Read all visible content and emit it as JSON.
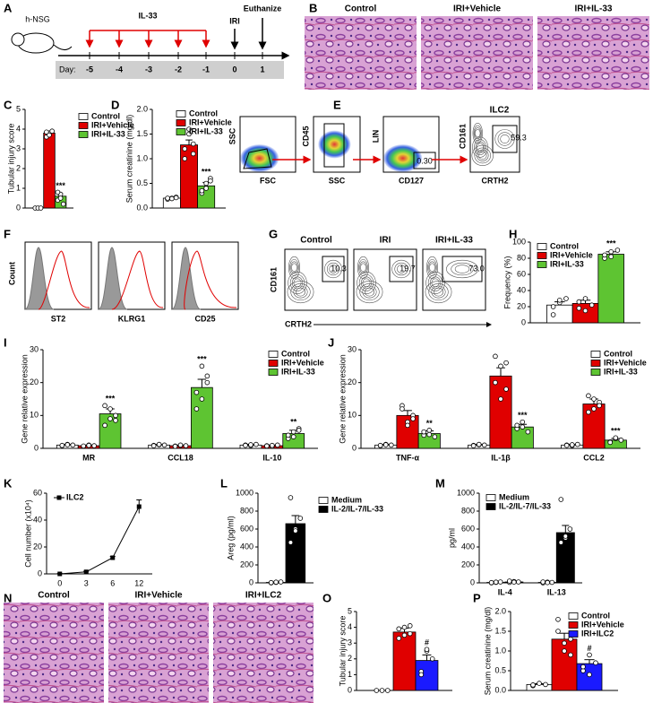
{
  "chart_data": [
    {
      "type": "bar",
      "label": "C",
      "ylabel": "Tubular injury score",
      "ylim": [
        0,
        5
      ],
      "yticks": [
        0,
        1,
        2,
        3,
        4,
        5
      ],
      "legend": "right",
      "series": [
        {
          "name": "Control",
          "color": "#ffffff",
          "values": [
            0
          ],
          "errors": [
            0
          ],
          "points": [
            [
              0,
              0,
              0
            ]
          ]
        },
        {
          "name": "IRI+Vehicle",
          "color": "#e00000",
          "values": [
            3.8
          ],
          "errors": [
            0.1
          ],
          "points": [
            [
              3.6,
              3.8,
              3.9,
              3.85,
              3.7
            ]
          ]
        },
        {
          "name": "IRI+IL-33",
          "color": "#5ec432",
          "values": [
            0.6
          ],
          "errors": [
            0.15
          ],
          "points": [
            [
              0.4,
              0.7,
              0.2,
              0.8,
              0.5
            ]
          ],
          "sig": [
            "***"
          ]
        }
      ]
    },
    {
      "type": "bar",
      "label": "D",
      "ylabel": "Serum creatinine (mg/dl)",
      "ylim": [
        0,
        2
      ],
      "yticks": [
        {
          "value": 0,
          "label": "0.0"
        },
        {
          "value": 0.5,
          "label": "0.5"
        },
        {
          "value": 1,
          "label": "1.0"
        },
        {
          "value": 1.5,
          "label": "1.5"
        },
        {
          "value": 2,
          "label": "2.0"
        }
      ],
      "legend": "upper right",
      "series": [
        {
          "name": "Control",
          "color": "#ffffff",
          "values": [
            0.2
          ],
          "errors": [
            0.02
          ],
          "points": [
            [
              0.18,
              0.2,
              0.22,
              0.2,
              0.19,
              0.21
            ]
          ]
        },
        {
          "name": "IRI+Vehicle",
          "color": "#e00000",
          "values": [
            1.28
          ],
          "errors": [
            0.1
          ],
          "points": [
            [
              1.0,
              1.5,
              1.3,
              1.2,
              1.6,
              1.1
            ]
          ]
        },
        {
          "name": "IRI+IL-33",
          "color": "#5ec432",
          "values": [
            0.45
          ],
          "errors": [
            0.07
          ],
          "points": [
            [
              0.3,
              0.5,
              0.6,
              0.35,
              0.4,
              0.55
            ]
          ],
          "sig": [
            "***"
          ]
        }
      ]
    },
    {
      "type": "bar",
      "label": "H",
      "ylabel": "Frequency (%)",
      "ylim": [
        0,
        100
      ],
      "yticks": [
        0,
        20,
        40,
        60,
        80,
        100
      ],
      "legend": "upper left",
      "series": [
        {
          "name": "Control",
          "color": "#ffffff",
          "values": [
            22
          ],
          "errors": [
            4
          ],
          "points": [
            [
              10,
              25,
              30,
              20,
              28
            ]
          ]
        },
        {
          "name": "IRI+Vehicle",
          "color": "#e00000",
          "values": [
            24
          ],
          "errors": [
            4
          ],
          "points": [
            [
              18,
              30,
              22,
              26,
              15
            ]
          ]
        },
        {
          "name": "IRI+IL-33",
          "color": "#5ec432",
          "values": [
            85
          ],
          "errors": [
            3
          ],
          "points": [
            [
              80,
              88,
              90,
              84,
              82
            ]
          ],
          "sig": [
            "***"
          ]
        }
      ]
    },
    {
      "type": "bar",
      "label": "I",
      "ylabel": "Gene relative expression",
      "categories": [
        "MR",
        "CCL18",
        "IL-10"
      ],
      "ylim": [
        0,
        30
      ],
      "yticks": [
        0,
        10,
        20,
        30
      ],
      "legend": "upper right",
      "series": [
        {
          "name": "Control",
          "color": "#ffffff",
          "values": [
            1,
            1,
            1
          ],
          "errors": [
            0.2,
            0.2,
            0.2
          ],
          "points": [
            [
              0.8,
              1.2,
              1,
              0.9,
              1.1
            ],
            [
              0.9,
              1.1,
              1,
              0.8,
              1.2
            ],
            [
              1,
              0.8,
              1.2,
              0.9,
              1.1
            ]
          ]
        },
        {
          "name": "IRI+Vehicle",
          "color": "#e00000",
          "values": [
            0.8,
            0.8,
            0.8
          ],
          "errors": [
            0.2,
            0.2,
            0.2
          ],
          "points": [
            [
              0.6,
              1,
              0.8,
              0.7,
              0.9
            ],
            [
              0.7,
              0.9,
              0.8,
              0.6,
              1
            ],
            [
              0.8,
              0.6,
              1,
              0.7,
              0.9
            ]
          ]
        },
        {
          "name": "IRI+IL-33",
          "color": "#5ec432",
          "values": [
            10.5,
            18.5,
            4.5
          ],
          "errors": [
            1.5,
            2.5,
            1
          ],
          "points": [
            [
              7,
              12,
              10,
              13,
              9,
              8.5
            ],
            [
              12,
              25,
              20,
              17,
              15,
              22
            ],
            [
              3,
              5,
              6,
              4,
              3.5,
              5.5
            ]
          ],
          "sig": [
            "***",
            "***",
            "**"
          ]
        }
      ]
    },
    {
      "type": "bar",
      "label": "J",
      "ylabel": "Gene relative expression",
      "categories": [
        "TNF-α",
        "IL-1β",
        "CCL2"
      ],
      "ylim": [
        0,
        30
      ],
      "yticks": [
        0,
        10,
        20,
        30
      ],
      "legend": "upper right",
      "series": [
        {
          "name": "Control",
          "color": "#ffffff",
          "values": [
            1,
            1,
            1
          ],
          "errors": [
            0.2,
            0.2,
            0.2
          ],
          "points": [
            [
              0.8,
              1.2,
              1,
              0.9,
              1.1
            ],
            [
              0.9,
              1.1,
              1,
              0.8,
              1.2
            ],
            [
              1,
              0.8,
              1.2,
              0.9,
              1.1
            ]
          ]
        },
        {
          "name": "IRI+Vehicle",
          "color": "#e00000",
          "values": [
            10,
            22,
            13.5
          ],
          "errors": [
            1.5,
            2.5,
            1.5
          ],
          "points": [
            [
              13,
              8,
              10,
              12,
              7,
              9
            ],
            [
              28,
              25,
              18,
              20,
              15,
              26
            ],
            [
              16,
              12,
              14,
              11,
              15,
              13
            ]
          ]
        },
        {
          "name": "IRI+IL-33",
          "color": "#5ec432",
          "values": [
            4.5,
            6.5,
            2.5
          ],
          "errors": [
            0.8,
            0.8,
            0.5
          ],
          "points": [
            [
              4,
              5.5,
              3.5,
              5,
              4.2
            ],
            [
              6,
              8,
              5,
              7,
              6.5
            ],
            [
              2,
              3,
              2.5,
              1.8,
              3.2
            ]
          ],
          "sig": [
            "**",
            "***",
            "***"
          ]
        }
      ]
    },
    {
      "type": "line",
      "label": "K",
      "ylabel": "Cell number (x10⁴)",
      "categories": [
        "0",
        "3",
        "6",
        "12"
      ],
      "ylim": [
        0,
        60
      ],
      "yticks": [
        0,
        20,
        40,
        60
      ],
      "legend": "upper left",
      "series": [
        {
          "name": "ILC2",
          "color": "#000000",
          "values": [
            0,
            1.5,
            12,
            50
          ],
          "errors": [
            0.3,
            0.5,
            1,
            5
          ]
        }
      ]
    },
    {
      "type": "bar",
      "label": "L",
      "ylabel": "Areg (pg/ml)",
      "ylim": [
        0,
        1000
      ],
      "yticks": [
        0,
        200,
        400,
        600,
        800,
        1000
      ],
      "legend": "right",
      "series": [
        {
          "name": "Medium",
          "color": "#ffffff",
          "values": [
            5
          ],
          "errors": [
            3
          ],
          "points": [
            [
              0,
              5,
              10,
              3,
              8
            ]
          ]
        },
        {
          "name": "IL-2/IL-7/IL-33",
          "color": "#000000",
          "values": [
            660
          ],
          "errors": [
            90
          ],
          "points": [
            [
              950,
              600,
              720,
              450,
              580
            ]
          ]
        }
      ]
    },
    {
      "type": "bar",
      "label": "M",
      "ylabel": "pg/ml",
      "categories": [
        "IL-4",
        "IL-13"
      ],
      "ylim": [
        0,
        1000
      ],
      "yticks": [
        0,
        200,
        400,
        600,
        800,
        1000
      ],
      "legend": "upper left",
      "series": [
        {
          "name": "Medium",
          "color": "#ffffff",
          "values": [
            5,
            5
          ],
          "errors": [
            3,
            3
          ],
          "points": [
            [
              0,
              5,
              10,
              3,
              8
            ],
            [
              0,
              8,
              5,
              10,
              3
            ]
          ]
        },
        {
          "name": "IL-2/IL-7/IL-33",
          "color": "#000000",
          "values": [
            10,
            560
          ],
          "errors": [
            5,
            80
          ],
          "points": [
            [
              5,
              15,
              10,
              20,
              8
            ],
            [
              930,
              500,
              600,
              450,
              520
            ]
          ]
        }
      ]
    },
    {
      "type": "bar",
      "label": "O",
      "ylabel": "Tubular injury score",
      "ylim": [
        0,
        5
      ],
      "yticks": [
        0,
        1,
        2,
        3,
        4,
        5
      ],
      "series": [
        {
          "color": "#ffffff",
          "values": [
            0
          ],
          "errors": [
            0
          ],
          "points": [
            [
              0,
              0,
              0
            ]
          ]
        },
        {
          "color": "#e00000",
          "values": [
            3.7
          ],
          "errors": [
            0.25
          ],
          "points": [
            [
              3.3,
              4,
              3.6,
              3.9,
              3.5,
              4.1
            ]
          ]
        },
        {
          "color": "#1a1aff",
          "values": [
            1.9
          ],
          "errors": [
            0.35
          ],
          "points": [
            [
              1.2,
              2.5,
              2,
              1,
              2.6
            ]
          ],
          "sig": [
            "#"
          ]
        }
      ]
    },
    {
      "type": "bar",
      "label": "P",
      "ylabel": "Serum creatinine (mg/dl)",
      "ylim": [
        0,
        2
      ],
      "yticks": [
        {
          "value": 0,
          "label": "0.0"
        },
        {
          "value": 0.5,
          "label": "0.5"
        },
        {
          "value": 1,
          "label": "1.0"
        },
        {
          "value": 1.5,
          "label": "1.5"
        },
        {
          "value": 2,
          "label": "2.0"
        }
      ],
      "legend": "upper right",
      "series": [
        {
          "name": "Control",
          "color": "#ffffff",
          "values": [
            0.15
          ],
          "errors": [
            0.02
          ],
          "points": [
            [
              0.12,
              0.18,
              0.15,
              0.14
            ]
          ]
        },
        {
          "name": "IRI+Vehicle",
          "color": "#e00000",
          "values": [
            1.3
          ],
          "errors": [
            0.15
          ],
          "points": [
            [
              1.8,
              1.0,
              1.3,
              1.5,
              1.2,
              0.9
            ]
          ]
        },
        {
          "name": "IRI+ILC2",
          "color": "#1a1aff",
          "values": [
            0.68
          ],
          "errors": [
            0.1
          ],
          "points": [
            [
              0.5,
              0.9,
              0.7,
              0.6,
              0.4
            ]
          ],
          "sig": [
            "#"
          ]
        }
      ]
    }
  ],
  "panels": [
    {
      "label": "A",
      "mouse": "h-NSG",
      "drug": "IL-33",
      "events": [
        "IRI",
        "Euthanize"
      ],
      "day_label": "Day:",
      "days": [
        "-5",
        "-4",
        "-3",
        "-2",
        "-1",
        "0",
        "1"
      ]
    },
    {
      "label": "B",
      "images": [
        "Control",
        "IRI+Vehicle",
        "IRI+IL-33"
      ]
    },
    {
      "label": "E",
      "plots": [
        {
          "y": "SSC",
          "x": "FSC"
        },
        {
          "y": "CD45",
          "x": "SSC"
        },
        {
          "y": "LIN",
          "x": "CD127",
          "gate": "0.30"
        },
        {
          "y": "CD161",
          "x": "CRTH2",
          "title": "ILC2",
          "gate": "59.3"
        }
      ]
    },
    {
      "label": "F",
      "ylabel": "Count",
      "plots": [
        "ST2",
        "KLRG1",
        "CD25"
      ]
    },
    {
      "label": "G",
      "ylabel": "CD161",
      "xlabel": "CRTH2",
      "plots": [
        {
          "title": "Control",
          "gate": "10.3"
        },
        {
          "title": "IRI",
          "gate": "19.7"
        },
        {
          "title": "IRI+IL-33",
          "gate": "73.0"
        }
      ]
    },
    {
      "label": "N",
      "images": [
        "Control",
        "IRI+Vehicle",
        "IRI+ILC2"
      ]
    }
  ]
}
